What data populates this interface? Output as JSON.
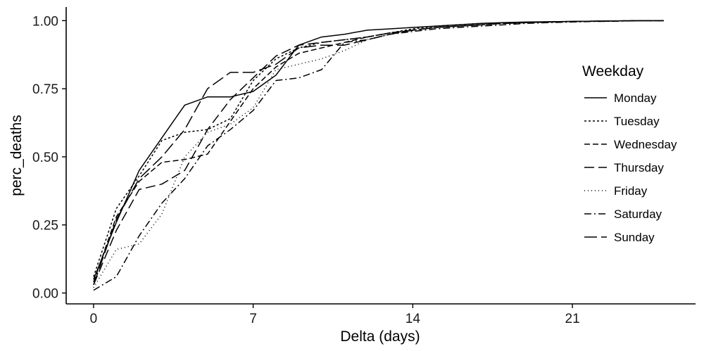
{
  "chart_data": {
    "type": "line",
    "xlabel": "Delta (days)",
    "ylabel": "perc_deaths",
    "xlim": [
      -1.2,
      26.4
    ],
    "ylim": [
      -0.04,
      1.05
    ],
    "x_ticks": [
      0,
      7,
      14,
      21
    ],
    "x_tick_labels": [
      "0",
      "7",
      "14",
      "21"
    ],
    "y_ticks": [
      0,
      0.25,
      0.5,
      0.75,
      1.0
    ],
    "y_tick_labels": [
      "0.00",
      "0.25",
      "0.50",
      "0.75",
      "1.00"
    ],
    "grid": false,
    "legend": {
      "title": "Weekday",
      "position": "right"
    },
    "series": [
      {
        "name": "Monday",
        "dash": "",
        "x": [
          0,
          1,
          2,
          3,
          4,
          5,
          6,
          7,
          8,
          9,
          10,
          11,
          12,
          13,
          14,
          15,
          16,
          17,
          18,
          19,
          20,
          21,
          22,
          23,
          24,
          25
        ],
        "values": [
          0.05,
          0.26,
          0.45,
          0.57,
          0.69,
          0.72,
          0.72,
          0.74,
          0.8,
          0.91,
          0.94,
          0.95,
          0.965,
          0.97,
          0.975,
          0.98,
          0.985,
          0.99,
          0.993,
          0.995,
          0.996,
          0.997,
          0.998,
          0.999,
          1.0,
          1.0
        ]
      },
      {
        "name": "Tuesday",
        "dash": "3 3",
        "x": [
          0,
          1,
          2,
          3,
          4,
          5,
          6,
          7,
          8,
          9,
          10,
          11,
          12,
          13,
          14,
          15,
          16,
          17,
          18,
          19,
          20,
          21,
          22,
          23,
          24,
          25
        ],
        "values": [
          0.06,
          0.31,
          0.43,
          0.56,
          0.59,
          0.6,
          0.64,
          0.78,
          0.86,
          0.9,
          0.92,
          0.93,
          0.94,
          0.955,
          0.97,
          0.98,
          0.985,
          0.99,
          0.992,
          0.994,
          0.996,
          0.997,
          0.998,
          0.999,
          1.0,
          1.0
        ]
      },
      {
        "name": "Wednesday",
        "dash": "8 4",
        "x": [
          0,
          1,
          2,
          3,
          4,
          5,
          6,
          7,
          8,
          9,
          10,
          11,
          12,
          13,
          14,
          15,
          16,
          17,
          18,
          19,
          20,
          21,
          22,
          23,
          24,
          25
        ],
        "values": [
          0.04,
          0.28,
          0.41,
          0.48,
          0.49,
          0.51,
          0.63,
          0.75,
          0.83,
          0.88,
          0.9,
          0.92,
          0.94,
          0.955,
          0.965,
          0.975,
          0.98,
          0.985,
          0.99,
          0.993,
          0.995,
          0.997,
          0.998,
          0.999,
          1.0,
          1.0
        ]
      },
      {
        "name": "Thursday",
        "dash": "14 6",
        "x": [
          0,
          1,
          2,
          3,
          4,
          5,
          6,
          7,
          8,
          9,
          10,
          11,
          12,
          13,
          14,
          15,
          16,
          17,
          18,
          19,
          20,
          21,
          22,
          23,
          24,
          25
        ],
        "values": [
          0.03,
          0.23,
          0.38,
          0.4,
          0.45,
          0.6,
          0.71,
          0.79,
          0.87,
          0.91,
          0.92,
          0.93,
          0.94,
          0.955,
          0.965,
          0.975,
          0.98,
          0.985,
          0.99,
          0.993,
          0.995,
          0.997,
          0.998,
          0.999,
          1.0,
          1.0
        ]
      },
      {
        "name": "Friday",
        "dash": "1 4",
        "x": [
          0,
          1,
          2,
          3,
          4,
          5,
          6,
          7,
          8,
          9,
          10,
          11,
          12,
          13,
          14,
          15,
          16,
          17,
          18,
          19,
          20,
          21,
          22,
          23,
          24,
          25
        ],
        "values": [
          0.02,
          0.16,
          0.18,
          0.29,
          0.5,
          0.59,
          0.62,
          0.68,
          0.82,
          0.84,
          0.86,
          0.89,
          0.93,
          0.95,
          0.965,
          0.975,
          0.98,
          0.985,
          0.99,
          0.993,
          0.995,
          0.997,
          0.998,
          0.999,
          1.0,
          1.0
        ]
      },
      {
        "name": "Saturday",
        "dash": "10 4 2 4",
        "x": [
          0,
          1,
          2,
          3,
          4,
          5,
          6,
          7,
          8,
          9,
          10,
          11,
          12,
          13,
          14,
          15,
          16,
          17,
          18,
          19,
          20,
          21,
          22,
          23,
          24,
          25
        ],
        "values": [
          0.01,
          0.06,
          0.21,
          0.33,
          0.42,
          0.54,
          0.6,
          0.67,
          0.78,
          0.79,
          0.82,
          0.92,
          0.93,
          0.95,
          0.96,
          0.97,
          0.975,
          0.98,
          0.985,
          0.99,
          0.993,
          0.995,
          0.997,
          0.998,
          1.0,
          1.0
        ]
      },
      {
        "name": "Sunday",
        "dash": "18 6",
        "x": [
          0,
          1,
          2,
          3,
          4,
          5,
          6,
          7,
          8,
          9,
          10,
          11,
          12,
          13,
          14,
          15,
          16,
          17,
          18,
          19,
          20,
          21,
          22,
          23,
          24,
          25
        ],
        "values": [
          0.03,
          0.27,
          0.42,
          0.5,
          0.6,
          0.75,
          0.81,
          0.81,
          0.84,
          0.9,
          0.91,
          0.91,
          0.93,
          0.95,
          0.965,
          0.975,
          0.98,
          0.985,
          0.99,
          0.993,
          0.995,
          0.997,
          0.998,
          0.999,
          1.0,
          1.0
        ]
      }
    ]
  }
}
